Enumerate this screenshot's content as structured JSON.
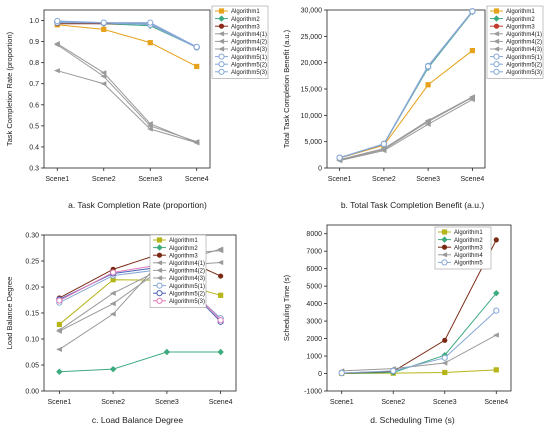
{
  "chart_data": [
    {
      "type": "line",
      "caption": "a. Task Completion Rate (proportion)",
      "ylabel": "Task Completion Rate (proportion)",
      "xlabel": "",
      "categories": [
        "Scene1",
        "Scene2",
        "Scene3",
        "Scene4"
      ],
      "ylim": [
        0.3,
        1.05
      ],
      "yticks": [
        0.3,
        0.4,
        0.5,
        0.6,
        0.7,
        0.8,
        0.9,
        1.0
      ],
      "ytick_labels": [
        "0.3",
        "0.4",
        "0.5",
        "0.6",
        "0.7",
        "0.8",
        "0.9",
        "1.0"
      ],
      "legend_position": "top-right",
      "grid": false,
      "series": [
        {
          "name": "Algorithm1",
          "color": "#e6a21a",
          "marker": "square",
          "values": [
            0.98,
            0.958,
            0.895,
            0.782
          ]
        },
        {
          "name": "Algorithm2",
          "color": "#3daa7f",
          "marker": "diamond",
          "values": [
            0.99,
            0.985,
            0.975,
            0.873
          ]
        },
        {
          "name": "Algorithm3",
          "color": "#8b2a1a",
          "marker": "circle",
          "values": [
            0.985,
            0.985,
            0.985,
            0.873
          ]
        },
        {
          "name": "Algorithm4(1)",
          "color": "#9a9a9a",
          "marker": "tri-left",
          "values": [
            0.762,
            0.7,
            0.485,
            0.42
          ]
        },
        {
          "name": "Algorithm4(2)",
          "color": "#9a9a9a",
          "marker": "tri-left",
          "values": [
            0.885,
            0.735,
            0.5,
            0.425
          ]
        },
        {
          "name": "Algorithm4(3)",
          "color": "#9a9a9a",
          "marker": "tri-left",
          "values": [
            0.89,
            0.752,
            0.51,
            0.42
          ]
        },
        {
          "name": "Algorithm5(1)",
          "color": "#86a8d6",
          "marker": "open-circle",
          "values": [
            0.995,
            0.99,
            0.985,
            0.875
          ]
        },
        {
          "name": "Algorithm5(2)",
          "color": "#86a8d6",
          "marker": "open-circle",
          "values": [
            0.99,
            0.988,
            0.98,
            0.872
          ]
        },
        {
          "name": "Algorithm5(3)",
          "color": "#86a8d6",
          "marker": "open-circle",
          "values": [
            0.998,
            0.99,
            0.99,
            0.875
          ]
        }
      ]
    },
    {
      "type": "line",
      "caption": "b. Total Task Completion Benefit (a.u.)",
      "ylabel": "Total Task Completion Benefit (a.u.)",
      "xlabel": "",
      "categories": [
        "Scene1",
        "Scene2",
        "Scene3",
        "Scene4"
      ],
      "ylim": [
        0,
        30000
      ],
      "yticks": [
        0,
        5000,
        10000,
        15000,
        20000,
        25000,
        30000
      ],
      "ytick_labels": [
        "0",
        "5,000",
        "10,000",
        "15,000",
        "20,000",
        "25,000",
        "30,000"
      ],
      "legend_position": "top-right",
      "grid": false,
      "series": [
        {
          "name": "Algorithm1",
          "color": "#e6a21a",
          "marker": "square",
          "values": [
            1900,
            4300,
            15800,
            22300
          ]
        },
        {
          "name": "Algorithm2",
          "color": "#3daa7f",
          "marker": "diamond",
          "values": [
            1950,
            4500,
            19000,
            29600
          ]
        },
        {
          "name": "Algorithm3",
          "color": "#c0392b",
          "marker": "circle",
          "values": [
            1950,
            4500,
            19300,
            29700
          ]
        },
        {
          "name": "Algorithm4(1)",
          "color": "#9a9a9a",
          "marker": "tri-left",
          "values": [
            1400,
            3300,
            8300,
            13000
          ]
        },
        {
          "name": "Algorithm4(2)",
          "color": "#9a9a9a",
          "marker": "tri-left",
          "values": [
            1500,
            3500,
            8800,
            13400
          ]
        },
        {
          "name": "Algorithm4(3)",
          "color": "#9a9a9a",
          "marker": "tri-left",
          "values": [
            1600,
            3700,
            9000,
            13500
          ]
        },
        {
          "name": "Algorithm5(1)",
          "color": "#86a8d6",
          "marker": "open-circle",
          "values": [
            1950,
            4600,
            19400,
            29800
          ]
        },
        {
          "name": "Algorithm5(2)",
          "color": "#86a8d6",
          "marker": "open-circle",
          "values": [
            1950,
            4500,
            19200,
            29700
          ]
        },
        {
          "name": "Algorithm5(3)",
          "color": "#86a8d6",
          "marker": "open-circle",
          "values": [
            1950,
            4550,
            19300,
            29750
          ]
        }
      ]
    },
    {
      "type": "line",
      "caption": "c. Load Balance Degree",
      "ylabel": "Load Balance Degree",
      "xlabel": "",
      "categories": [
        "Scene1",
        "Scene2",
        "Scene3",
        "Scene4"
      ],
      "ylim": [
        0.0,
        0.3
      ],
      "yticks": [
        0.0,
        0.05,
        0.1,
        0.15,
        0.2,
        0.25,
        0.3
      ],
      "ytick_labels": [
        "0.00",
        "0.05",
        "0.10",
        "0.15",
        "0.20",
        "0.25",
        "0.30"
      ],
      "legend_position": "top-right",
      "grid": false,
      "series": [
        {
          "name": "Algorithm1",
          "color": "#b5b51a",
          "marker": "square",
          "values": [
            0.128,
            0.214,
            0.213,
            0.184
          ]
        },
        {
          "name": "Algorithm2",
          "color": "#3daa7f",
          "marker": "diamond",
          "values": [
            0.037,
            0.042,
            0.075,
            0.075
          ]
        },
        {
          "name": "Algorithm3",
          "color": "#7a2a14",
          "marker": "circle",
          "values": [
            0.179,
            0.234,
            0.268,
            0.221
          ]
        },
        {
          "name": "Algorithm4(1)",
          "color": "#9a9a9a",
          "marker": "tri-left",
          "values": [
            0.08,
            0.148,
            0.262,
            0.27
          ]
        },
        {
          "name": "Algorithm4(2)",
          "color": "#9a9a9a",
          "marker": "tri-left",
          "values": [
            0.115,
            0.168,
            0.242,
            0.273
          ]
        },
        {
          "name": "Algorithm4(3)",
          "color": "#9a9a9a",
          "marker": "tri-left",
          "values": [
            0.117,
            0.188,
            0.24,
            0.247
          ]
        },
        {
          "name": "Algorithm5(1)",
          "color": "#86a8d6",
          "marker": "open-circle",
          "values": [
            0.17,
            0.222,
            0.235,
            0.14
          ]
        },
        {
          "name": "Algorithm5(2)",
          "color": "#4a63b8",
          "marker": "open-circle",
          "values": [
            0.176,
            0.226,
            0.24,
            0.133
          ]
        },
        {
          "name": "Algorithm5(3)",
          "color": "#e07ab8",
          "marker": "open-circle",
          "values": [
            0.174,
            0.228,
            0.245,
            0.136
          ]
        }
      ]
    },
    {
      "type": "line",
      "caption": "d. Scheduling Time (s)",
      "ylabel": "Scheduling Time (s)",
      "xlabel": "",
      "categories": [
        "Scene1",
        "Scene2",
        "Scene3",
        "Scene4"
      ],
      "ylim": [
        -1000,
        8500
      ],
      "yticks": [
        -1000,
        0,
        1000,
        2000,
        3000,
        4000,
        5000,
        6000,
        7000,
        8000
      ],
      "ytick_labels": [
        "-1000",
        "0",
        "1000",
        "2000",
        "3000",
        "4000",
        "5000",
        "6000",
        "7000",
        "8000"
      ],
      "legend_position": "top-left",
      "grid": false,
      "series": [
        {
          "name": "Algorithm1",
          "color": "#b5b51a",
          "marker": "square",
          "values": [
            5,
            20,
            60,
            210
          ]
        },
        {
          "name": "Algorithm2",
          "color": "#3daa7f",
          "marker": "diamond",
          "values": [
            10,
            60,
            1050,
            4600
          ]
        },
        {
          "name": "Algorithm3",
          "color": "#7a2a14",
          "marker": "circle",
          "values": [
            20,
            120,
            1900,
            7650
          ]
        },
        {
          "name": "Algorithm4",
          "color": "#9a9a9a",
          "marker": "tri-left",
          "values": [
            150,
            280,
            600,
            2200
          ]
        },
        {
          "name": "Algorithm5",
          "color": "#86a8d6",
          "marker": "open-circle",
          "values": [
            30,
            150,
            900,
            3600
          ]
        }
      ]
    }
  ]
}
